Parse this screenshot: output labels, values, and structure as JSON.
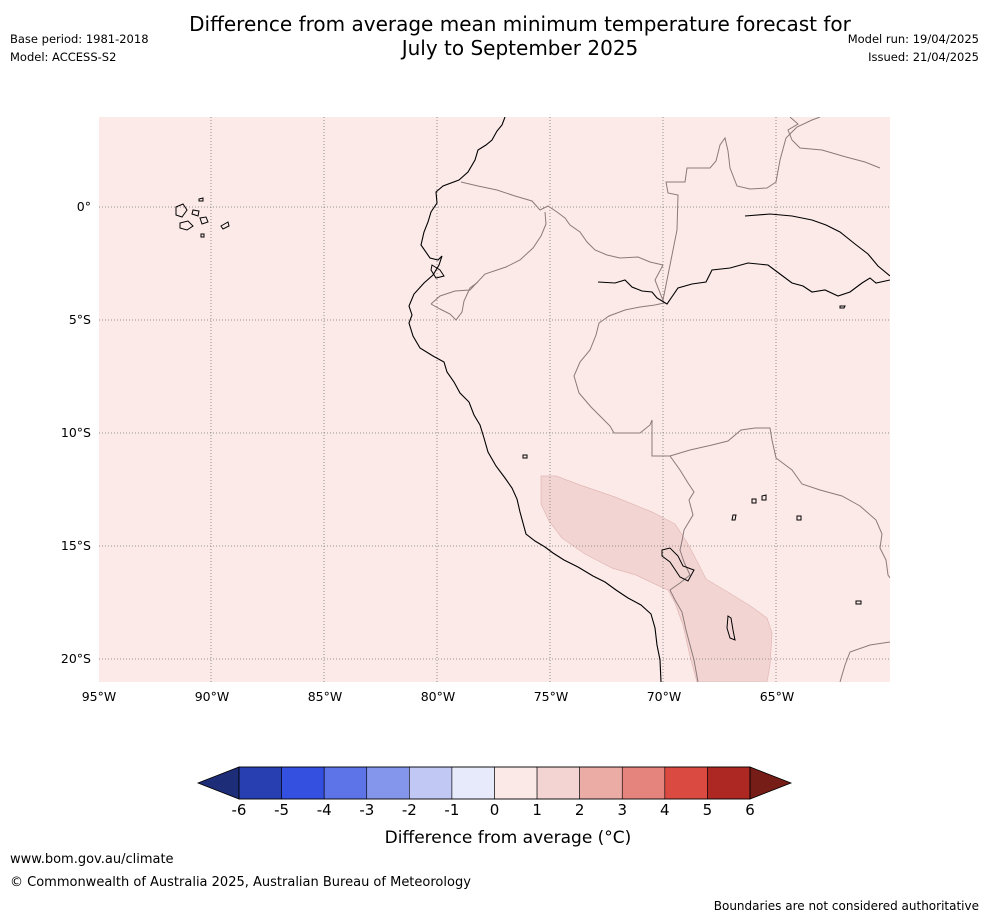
{
  "title": {
    "line1": "Difference from average mean minimum temperature forecast for",
    "line2": "July to September 2025"
  },
  "meta": {
    "base_period": "Base period: 1981-2018",
    "model": "Model: ACCESS-S2",
    "model_run": "Model run: 19/04/2025",
    "issued": "Issued: 21/04/2025"
  },
  "map": {
    "background_color": "#fbeae8",
    "anomaly_zone_color": "#f2d5d3",
    "lat_labels": [
      "0°",
      "5°S",
      "10°S",
      "15°S",
      "20°S"
    ],
    "lon_labels": [
      "95°W",
      "90°W",
      "85°W",
      "80°W",
      "75°W",
      "70°W",
      "65°W"
    ]
  },
  "colorbar": {
    "ticks": [
      "-6",
      "-5",
      "-4",
      "-3",
      "-2",
      "-1",
      "0",
      "1",
      "2",
      "3",
      "4",
      "5",
      "6"
    ],
    "colors": [
      "#273fb1",
      "#3450e0",
      "#5c74e8",
      "#8496ec",
      "#c1c8f4",
      "#e7eafb",
      "#fbe9e8",
      "#f3d4d2",
      "#ecaca6",
      "#e5847c",
      "#da4a40",
      "#ad2823"
    ],
    "extend_low_color": "#1e2d78",
    "extend_high_color": "#761d17",
    "label": "Difference from average ($^\\circ$C)",
    "label_display": "Difference from average (°C)"
  },
  "footer": {
    "url": "www.bom.gov.au/climate",
    "copyright": "© Commonwealth of Australia 2025, Australian Bureau of Meteorology",
    "disclaimer": "Boundaries are not considered authoritative"
  }
}
